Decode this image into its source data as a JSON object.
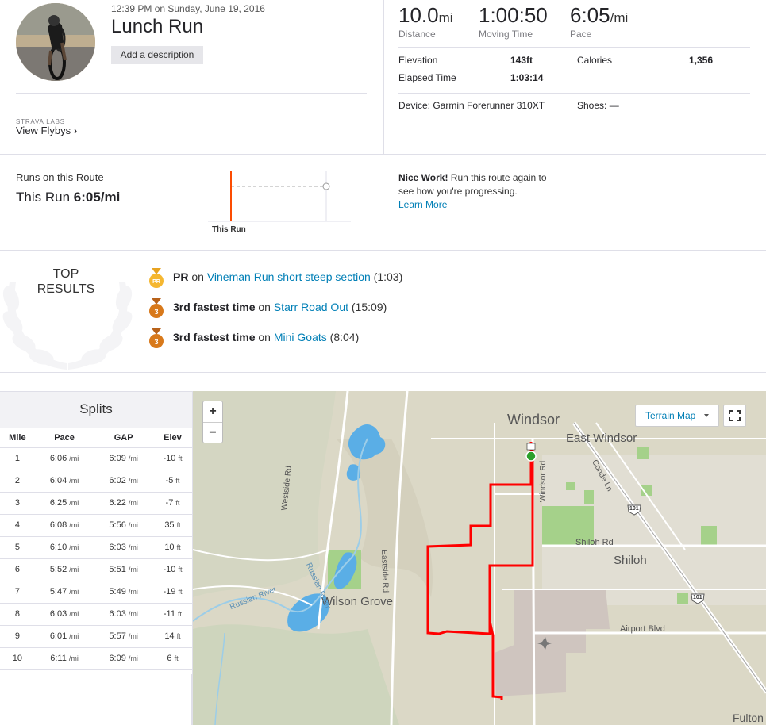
{
  "activity": {
    "datetime": "12:39 PM on Sunday, June 19, 2016",
    "title": "Lunch Run",
    "add_description": "Add a description"
  },
  "labs": {
    "tag": "STRAVA LABS",
    "link": "View Flybys"
  },
  "stats": {
    "distance": {
      "value": "10.0",
      "unit": "mi",
      "label": "Distance"
    },
    "moving_time": {
      "value": "1:00:50",
      "label": "Moving Time"
    },
    "pace": {
      "value": "6:05",
      "unit": "/mi",
      "label": "Pace"
    },
    "elevation_label": "Elevation",
    "elevation_value": "143ft",
    "calories_label": "Calories",
    "calories_value": "1,356",
    "elapsed_label": "Elapsed Time",
    "elapsed_value": "1:03:14",
    "device": "Device: Garmin Forerunner 310XT",
    "shoes": "Shoes: —"
  },
  "route": {
    "title": "Runs on this Route",
    "this_run_prefix": "This Run",
    "this_run_pace": "6:05/mi",
    "axis_label": "This Run",
    "nice_bold": "Nice Work!",
    "nice_text": " Run this route again to see how you're progressing.",
    "learn_more": "Learn More"
  },
  "top_results": {
    "label_line1": "TOP",
    "label_line2": "RESULTS",
    "items": [
      {
        "medal": "PR",
        "bold": "PR",
        "connector": " on ",
        "segment": "Vineman Run short steep section",
        "time": " (1:03)"
      },
      {
        "medal": "3",
        "bold": "3rd fastest time",
        "connector": " on ",
        "segment": "Starr Road Out",
        "time": " (15:09)"
      },
      {
        "medal": "3",
        "bold": "3rd fastest time",
        "connector": " on ",
        "segment": "Mini Goats",
        "time": " (8:04)"
      }
    ]
  },
  "splits": {
    "title": "Splits",
    "headers": [
      "Mile",
      "Pace",
      "GAP",
      "Elev"
    ],
    "pace_unit": "/mi",
    "elev_unit": "ft",
    "rows": [
      {
        "mile": "1",
        "pace": "6:06",
        "gap": "6:09",
        "elev": "-10"
      },
      {
        "mile": "2",
        "pace": "6:04",
        "gap": "6:02",
        "elev": "-5"
      },
      {
        "mile": "3",
        "pace": "6:25",
        "gap": "6:22",
        "elev": "-7"
      },
      {
        "mile": "4",
        "pace": "6:08",
        "gap": "5:56",
        "elev": "35"
      },
      {
        "mile": "5",
        "pace": "6:10",
        "gap": "6:03",
        "elev": "10"
      },
      {
        "mile": "6",
        "pace": "5:52",
        "gap": "5:51",
        "elev": "-10"
      },
      {
        "mile": "7",
        "pace": "5:47",
        "gap": "5:49",
        "elev": "-19"
      },
      {
        "mile": "8",
        "pace": "6:03",
        "gap": "6:03",
        "elev": "-11"
      },
      {
        "mile": "9",
        "pace": "6:01",
        "gap": "5:57",
        "elev": "14"
      },
      {
        "mile": "10",
        "pace": "6:11",
        "gap": "6:09",
        "elev": "6"
      }
    ]
  },
  "map": {
    "zoom_in": "+",
    "zoom_out": "−",
    "map_type": "Terrain Map",
    "labels": {
      "windsor": "Windsor",
      "east_windsor": "East Windsor",
      "shiloh": "Shiloh",
      "shiloh_rd": "Shiloh Rd",
      "wilson_grove": "Wilson Grove",
      "airport_blvd": "Airport Blvd",
      "westside_rd": "Westside Rd",
      "eastside_rd": "Eastside Rd",
      "windsor_rd": "Windsor Rd",
      "conde_ln": "Conde Ln",
      "russian_river": "Russian River",
      "fulton": "Fulton",
      "hwy": "101"
    },
    "colors": {
      "route": "#ff0000",
      "water": "#5aaee6",
      "park": "#a5d18a",
      "land": "#dbd8c6",
      "airport": "#cfc5bf",
      "start": "#2ca02c"
    }
  },
  "colors": {
    "link": "#007fb6",
    "medal_gold": "#f5b731",
    "medal_bronze": "#d8791b",
    "strava_orange": "#fc4c02"
  }
}
